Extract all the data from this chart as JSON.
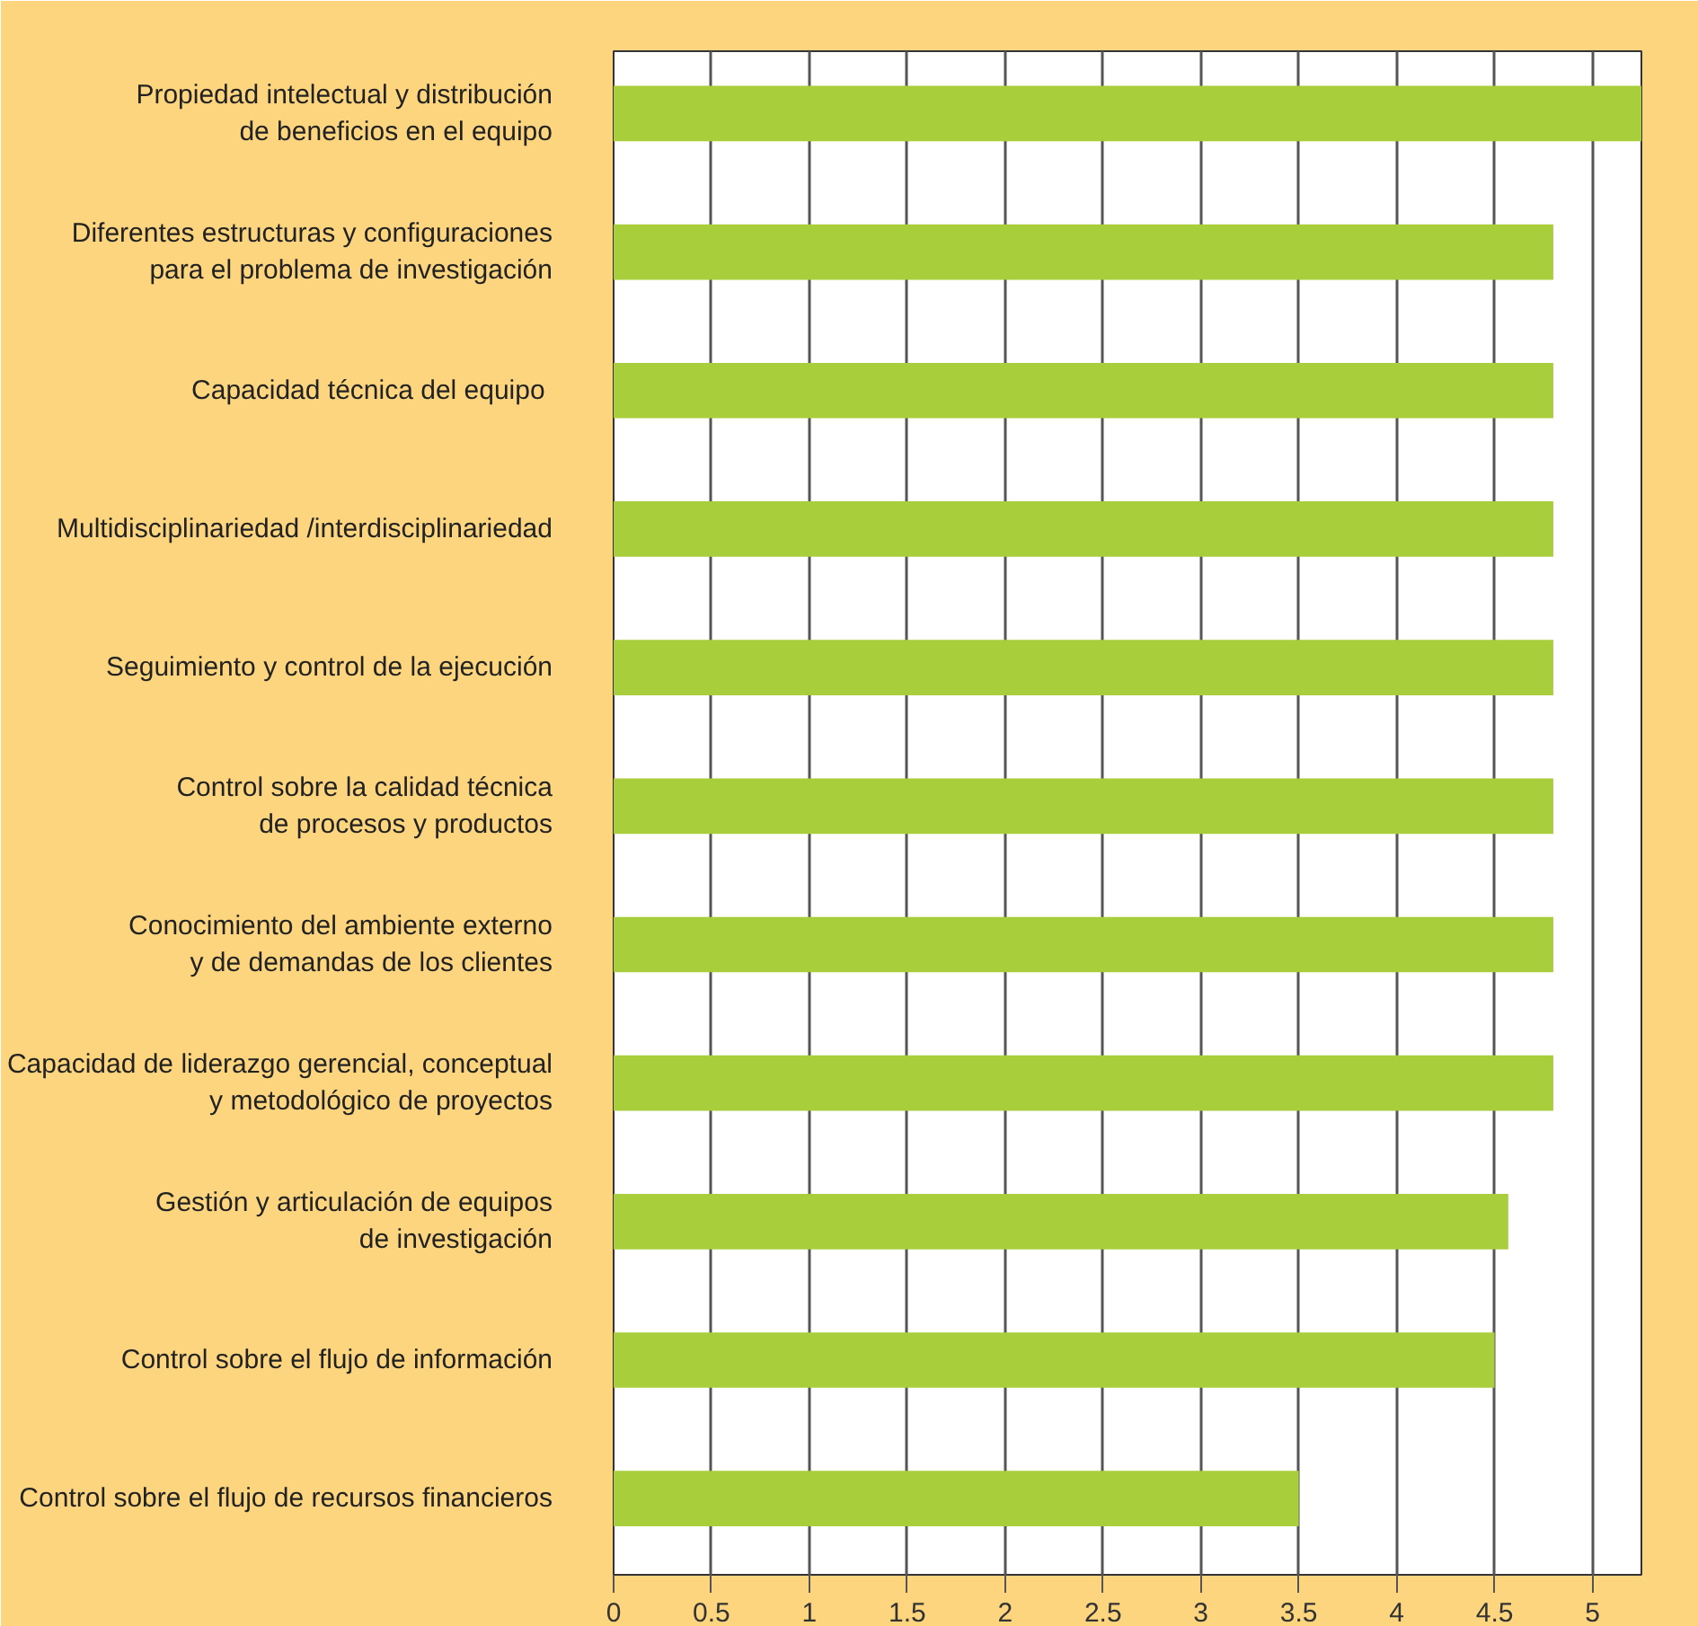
{
  "chart_data": {
    "type": "bar",
    "orientation": "horizontal",
    "categories": [
      "Propiedad intelectual y distribución\nde beneficios en el equipo",
      "Diferentes estructuras y configuraciones\npara el problema de investigación",
      "Capacidad técnica del  equipo",
      "Multidisciplinariedad /interdisciplinariedad",
      "Seguimiento y control de la ejecución",
      "Control sobre la calidad técnica\nde procesos y productos",
      "Conocimiento del ambiente externo\ny de demandas de los clientes",
      "Capacidad de liderazgo gerencial, conceptual\ny metodológico de proyectos",
      "Gestión y articulación de equipos\nde investigación",
      "Control sobre el flujo de información",
      "Control sobre el flujo de recursos financieros"
    ],
    "values": [
      5.25,
      4.8,
      4.8,
      4.8,
      4.8,
      4.8,
      4.8,
      4.8,
      4.57,
      4.5,
      3.5
    ],
    "color": "#a8ce3b",
    "xlim": [
      0,
      5.25
    ],
    "xticks": [
      0,
      0.5,
      1,
      1.5,
      2,
      2.5,
      3,
      3.5,
      4,
      4.5,
      5
    ],
    "grid": "x"
  }
}
